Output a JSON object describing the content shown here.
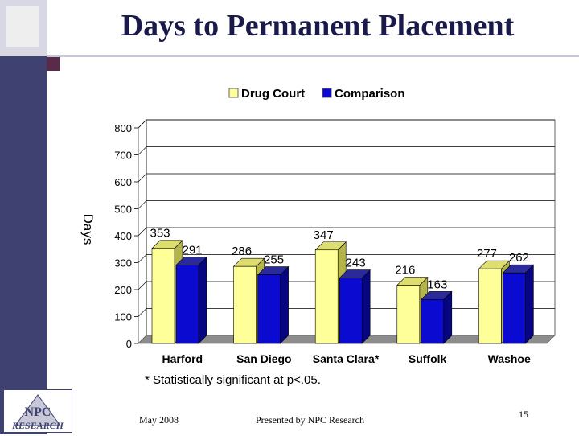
{
  "title": "Days to Permanent Placement",
  "chart_data": {
    "type": "bar",
    "title": "",
    "xlabel": "",
    "ylabel": "Days",
    "ylim": [
      0,
      800
    ],
    "yticks": [
      0,
      100,
      200,
      300,
      400,
      500,
      600,
      700,
      800
    ],
    "grid": true,
    "legend_position": "top",
    "categories": [
      "Harford",
      "San Diego",
      "Santa Clara*",
      "Suffolk",
      "Washoe"
    ],
    "series": [
      {
        "name": "Drug Court",
        "values": [
          353,
          286,
          347,
          216,
          277
        ],
        "color": "#ffff99"
      },
      {
        "name": "Comparison",
        "values": [
          291,
          255,
          243,
          163,
          262
        ],
        "color": "#0a0ad0"
      }
    ]
  },
  "footnote": "* Statistically significant at p<.05.",
  "footer": {
    "date": "May 2008",
    "presenter": "Presented by NPC Research",
    "page_number": "15"
  },
  "logo": {
    "text_top": "NPC",
    "text_bottom": "RESEARCH"
  }
}
